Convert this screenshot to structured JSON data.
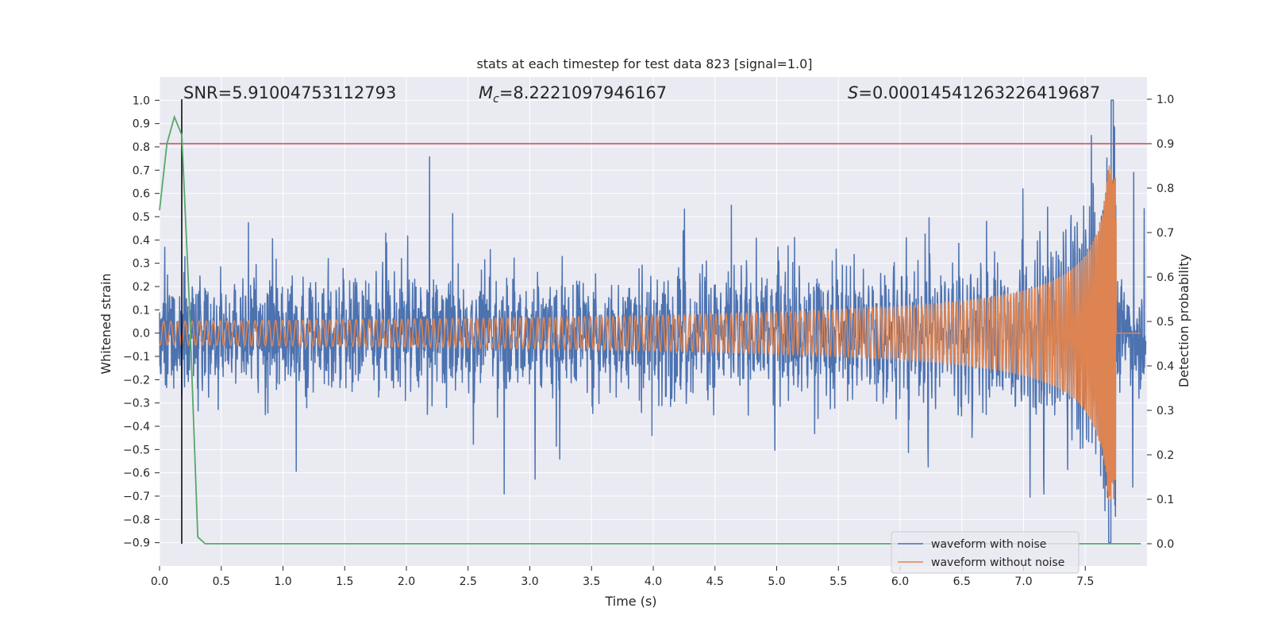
{
  "chart_data": {
    "type": "line",
    "title": "stats at each timestep for test data 823 [signal=1.0]",
    "xlabel": "Time (s)",
    "ylabel_left": "Whitened strain",
    "ylabel_right": "Detection probability",
    "xlim": [
      0.0,
      8.0
    ],
    "ylim_left": [
      -1.0,
      1.1
    ],
    "ylim_right": [
      -0.05,
      1.05
    ],
    "xticks": [
      0.0,
      0.5,
      1.0,
      1.5,
      2.0,
      2.5,
      3.0,
      3.5,
      4.0,
      4.5,
      5.0,
      5.5,
      6.0,
      6.5,
      7.0,
      7.5
    ],
    "xtick_labels": [
      "0.0",
      "0.5",
      "1.0",
      "1.5",
      "2.0",
      "2.5",
      "3.0",
      "3.5",
      "4.0",
      "4.5",
      "5.0",
      "5.5",
      "6.0",
      "6.5",
      "7.0",
      "7.5"
    ],
    "yticks_left": [
      1.0,
      0.9,
      0.8,
      0.7,
      0.6,
      0.5,
      0.4,
      0.3,
      0.2,
      0.1,
      0.0,
      -0.1,
      -0.2,
      -0.3,
      -0.4,
      -0.5,
      -0.6,
      -0.7,
      -0.8,
      -0.9
    ],
    "ytick_labels_left": [
      "1.0",
      "0.9",
      "0.8",
      "0.7",
      "0.6",
      "0.5",
      "0.4",
      "0.3",
      "0.2",
      "0.1",
      "0.0",
      "−0.1",
      "−0.2",
      "−0.3",
      "−0.4",
      "−0.5",
      "−0.6",
      "−0.7",
      "−0.8",
      "−0.9"
    ],
    "yticks_right": [
      1.0,
      0.9,
      0.8,
      0.7,
      0.6,
      0.5,
      0.4,
      0.3,
      0.2,
      0.1,
      0.0
    ],
    "ytick_labels_right": [
      "1.0",
      "0.9",
      "0.8",
      "0.7",
      "0.6",
      "0.5",
      "0.4",
      "0.3",
      "0.2",
      "0.1",
      "0.0"
    ],
    "annotations": {
      "snr": "SNR=5.91004753112793",
      "mc_symbol": "M",
      "mc_subscript": "c",
      "mc_value": "=8.2221097946167",
      "s_symbol": "S",
      "s_value": "=0.00014541263226419687"
    },
    "threshold_right": 0.9,
    "marker_time": 0.18,
    "merger_time": 7.75,
    "series": [
      {
        "name": "waveform with noise",
        "color": "#4c72b0",
        "axis": "left",
        "envelope_amplitude": 0.5,
        "peak_value": 1.0,
        "min_value": -0.9
      },
      {
        "name": "waveform without noise",
        "color": "#dd8452",
        "axis": "left",
        "initial_amplitude": 0.05,
        "peak_value": 0.72,
        "min_value": -0.63
      },
      {
        "name": "detection probability",
        "color": "#55a868",
        "axis": "right",
        "x": [
          0.0,
          0.06,
          0.12,
          0.18,
          0.24,
          0.31,
          0.37,
          7.95
        ],
        "values": [
          0.75,
          0.9,
          0.96,
          0.92,
          0.55,
          0.015,
          0.0,
          0.0
        ]
      }
    ],
    "threshold_color": "#c44e52",
    "legend": {
      "position": "lower-right",
      "entries": [
        "waveform with noise",
        "waveform without noise"
      ]
    }
  }
}
